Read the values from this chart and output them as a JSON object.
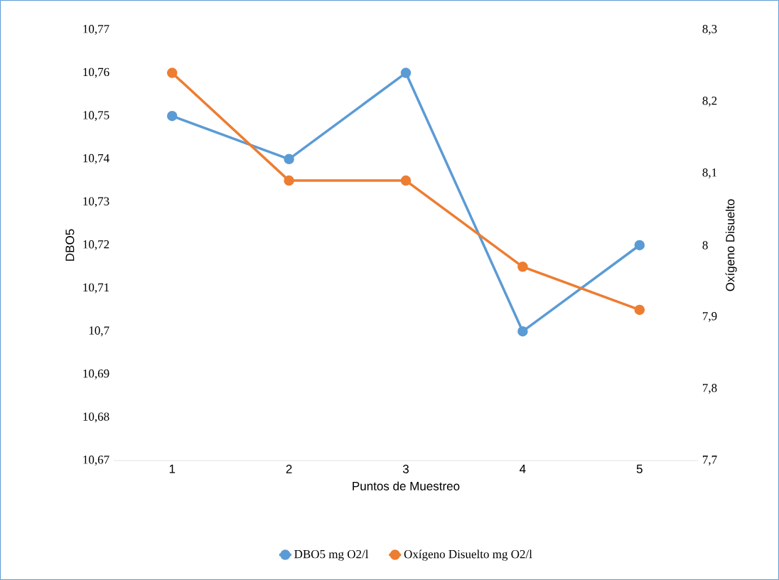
{
  "chart_data": {
    "type": "line",
    "xlabel": "Puntos de Muestreo",
    "ylabel": "DBO5",
    "y2label": "Oxígeno Disuelto",
    "categories": [
      "1",
      "2",
      "3",
      "4",
      "5"
    ],
    "series": [
      {
        "name": "DBO5 mg O2/l",
        "color": "#5b9bd5",
        "values": [
          10.75,
          10.74,
          10.76,
          10.7,
          10.72
        ]
      },
      {
        "name": "Oxígeno Disuelto mg O2/l",
        "color": "#ed7d31",
        "axis": "y2",
        "values": [
          8.24,
          8.09,
          8.09,
          7.97,
          7.91
        ]
      }
    ],
    "ylim": [
      10.67,
      10.77
    ],
    "yticks": [
      {
        "value": 10.67,
        "label": "10,67"
      },
      {
        "value": 10.68,
        "label": "10,68"
      },
      {
        "value": 10.69,
        "label": "10,69"
      },
      {
        "value": 10.7,
        "label": "10,7"
      },
      {
        "value": 10.71,
        "label": "10,71"
      },
      {
        "value": 10.72,
        "label": "10,72"
      },
      {
        "value": 10.73,
        "label": "10,73"
      },
      {
        "value": 10.74,
        "label": "10,74"
      },
      {
        "value": 10.75,
        "label": "10,75"
      },
      {
        "value": 10.76,
        "label": "10,76"
      },
      {
        "value": 10.77,
        "label": "10,77"
      }
    ],
    "y2lim": [
      7.7,
      8.3
    ],
    "y2ticks": [
      {
        "value": 7.7,
        "label": "7,7"
      },
      {
        "value": 7.8,
        "label": "7,8"
      },
      {
        "value": 7.9,
        "label": "7,9"
      },
      {
        "value": 8.0,
        "label": "8"
      },
      {
        "value": 8.1,
        "label": "8,1"
      },
      {
        "value": 8.2,
        "label": "8,2"
      },
      {
        "value": 8.3,
        "label": "8,3"
      }
    ],
    "legend": "bottom",
    "marker": "circle",
    "line_style": "solid"
  }
}
